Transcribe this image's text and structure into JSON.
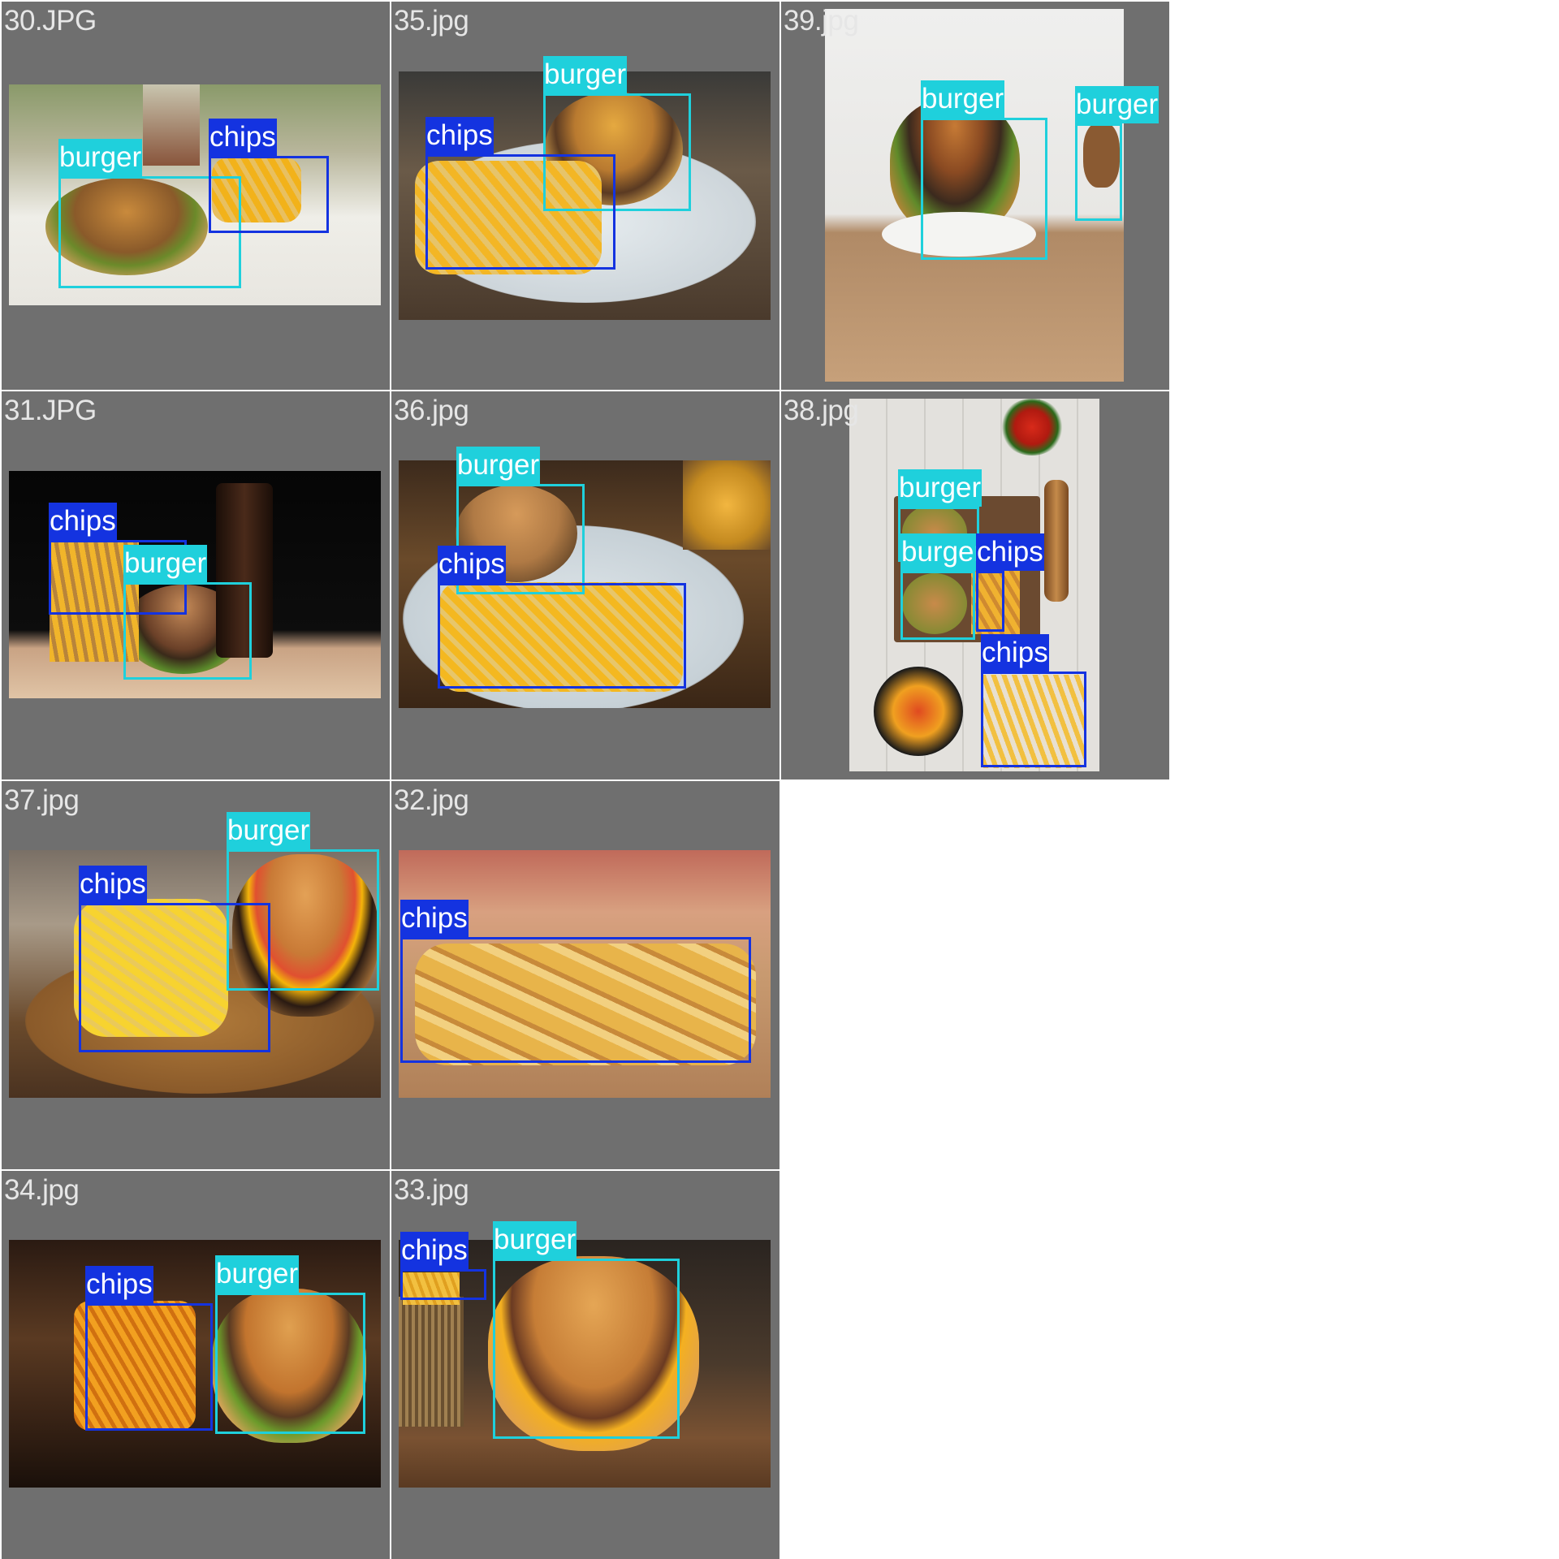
{
  "grid": {
    "tiles": [
      {
        "name": "30.JPG",
        "detections": [
          {
            "label": "burger"
          },
          {
            "label": "chips"
          }
        ]
      },
      {
        "name": "35.jpg",
        "detections": [
          {
            "label": "burger"
          },
          {
            "label": "chips"
          }
        ]
      },
      {
        "name": "39.jpg",
        "detections": [
          {
            "label": "burger"
          },
          {
            "label": "burger"
          }
        ]
      },
      {
        "name": "31.JPG",
        "detections": [
          {
            "label": "chips"
          },
          {
            "label": "burger"
          }
        ]
      },
      {
        "name": "36.jpg",
        "detections": [
          {
            "label": "burger"
          },
          {
            "label": "chips"
          }
        ]
      },
      {
        "name": "38.jpg",
        "detections": [
          {
            "label": "burger"
          },
          {
            "label": "burger"
          },
          {
            "label": "chips"
          },
          {
            "label": "chips"
          }
        ]
      },
      {
        "name": "37.jpg",
        "detections": [
          {
            "label": "burger"
          },
          {
            "label": "chips"
          }
        ]
      },
      {
        "name": "32.jpg",
        "detections": [
          {
            "label": "chips"
          }
        ]
      },
      {
        "name": "34.jpg",
        "detections": [
          {
            "label": "chips"
          },
          {
            "label": "burger"
          }
        ]
      },
      {
        "name": "33.jpg",
        "detections": [
          {
            "label": "chips"
          },
          {
            "label": "burger"
          }
        ]
      }
    ]
  },
  "colors": {
    "tile_bg": "#6f6f6f",
    "burger_box": "#1fd0dc",
    "chips_box": "#1433e0",
    "label_text": "#ffffff"
  }
}
